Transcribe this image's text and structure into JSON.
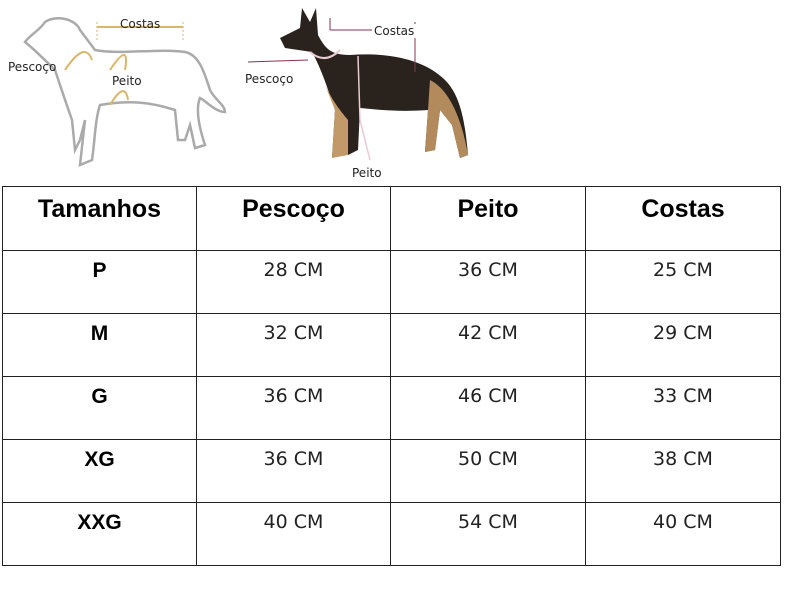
{
  "diagram_left": {
    "labels": {
      "back": "Costas",
      "neck": "Pescoço",
      "chest": "Peito"
    }
  },
  "diagram_right": {
    "labels": {
      "back": "Costas",
      "neck": "Pescoço",
      "chest": "Peito"
    }
  },
  "table": {
    "headers": [
      "Tamanhos",
      "Pescoço",
      "Peito",
      "Costas"
    ],
    "rows": [
      [
        "P",
        "28 CM",
        "36 CM",
        "25 CM"
      ],
      [
        "M",
        "32 CM",
        "42 CM",
        "29 CM"
      ],
      [
        "G",
        "36 CM",
        "46 CM",
        "33 CM"
      ],
      [
        "XG",
        "36 CM",
        "50 CM",
        "38 CM"
      ],
      [
        "XXG",
        "40 CM",
        "54 CM",
        "40 CM"
      ]
    ]
  }
}
